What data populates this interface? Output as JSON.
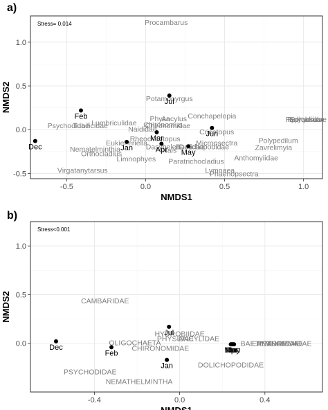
{
  "chart_data": [
    {
      "panel_label": "a)",
      "type": "scatter",
      "stress": "Stress= 0.014",
      "xlabel": "NMDS1",
      "ylabel": "NMDS2",
      "xlim": [
        -0.73,
        1.12
      ],
      "ylim": [
        -0.56,
        1.3
      ],
      "xticks": [
        -0.5,
        0.0,
        0.5,
        1.0
      ],
      "xtick_labels": [
        "-0.5",
        "0.0",
        "0.5",
        "1.0"
      ],
      "yticks": [
        -0.5,
        0.0,
        0.5,
        1.0
      ],
      "ytick_labels": [
        "-0.5",
        "0.0",
        "0.5",
        "1.0"
      ],
      "grid": true,
      "months": [
        {
          "label": "Dec",
          "x": -0.7,
          "y": -0.13
        },
        {
          "label": "Feb",
          "x": -0.41,
          "y": 0.22
        },
        {
          "label": "Jan",
          "x": -0.12,
          "y": -0.14
        },
        {
          "label": "Mar",
          "x": 0.07,
          "y": -0.03
        },
        {
          "label": "Apr",
          "x": 0.1,
          "y": -0.16
        },
        {
          "label": "Jul",
          "x": 0.15,
          "y": 0.39
        },
        {
          "label": "May",
          "x": 0.27,
          "y": -0.19
        },
        {
          "label": "Jun",
          "x": 0.42,
          "y": 0.02
        }
      ],
      "taxa": [
        {
          "label": "Procambarus",
          "x": 0.13,
          "y": 1.23
        },
        {
          "label": "Potamopyrgus",
          "x": 0.15,
          "y": 0.36
        },
        {
          "label": "Physa",
          "x": 0.09,
          "y": 0.13
        },
        {
          "label": "Ancylus",
          "x": 0.18,
          "y": 0.13
        },
        {
          "label": "Conchapelopia",
          "x": 0.42,
          "y": 0.16
        },
        {
          "label": "Chironomus",
          "x": 0.11,
          "y": 0.06
        },
        {
          "label": "Chironomidae",
          "x": 0.14,
          "y": 0.05
        },
        {
          "label": "Lumbriculidae",
          "x": -0.2,
          "y": 0.08
        },
        {
          "label": "Psychodidae",
          "x": -0.49,
          "y": 0.05
        },
        {
          "label": "Tubificidae",
          "x": -0.35,
          "y": 0.05
        },
        {
          "label": "Naididae",
          "x": -0.02,
          "y": 0.01
        },
        {
          "label": "Cricotopus",
          "x": 0.45,
          "y": -0.02
        },
        {
          "label": "Rheocricotopus",
          "x": 0.06,
          "y": -0.1
        },
        {
          "label": "Eukiefferiella",
          "x": -0.12,
          "y": -0.15
        },
        {
          "label": "Nematelminthia",
          "x": -0.32,
          "y": -0.22
        },
        {
          "label": "Orthocladius",
          "x": -0.28,
          "y": -0.27
        },
        {
          "label": "Limnophyes",
          "x": -0.06,
          "y": -0.33
        },
        {
          "label": "Virgatanytarsus",
          "x": -0.4,
          "y": -0.46
        },
        {
          "label": "Micropsectra",
          "x": 0.45,
          "y": -0.15
        },
        {
          "label": "Dolichopodidae",
          "x": 0.37,
          "y": -0.19
        },
        {
          "label": "Baetidae",
          "x": 0.28,
          "y": -0.19
        },
        {
          "label": "Dasyhelea",
          "x": 0.11,
          "y": -0.19
        },
        {
          "label": "Nais",
          "x": 0.15,
          "y": -0.23
        },
        {
          "label": "Paratrichocladius",
          "x": 0.32,
          "y": -0.36
        },
        {
          "label": "Lymnaea",
          "x": 0.47,
          "y": -0.46
        },
        {
          "label": "Phaenopsectra",
          "x": 0.56,
          "y": -0.5
        },
        {
          "label": "Anthomyiidae",
          "x": 0.7,
          "y": -0.32
        },
        {
          "label": "Zavrelimyia",
          "x": 0.81,
          "y": -0.2
        },
        {
          "label": "Polypedilum",
          "x": 0.84,
          "y": -0.12
        },
        {
          "label": "Tanytarsus",
          "x": 1.0,
          "y": 0.12
        },
        {
          "label": "Hydrobiidae",
          "x": 1.01,
          "y": 0.12
        },
        {
          "label": "Ephydridae",
          "x": 1.03,
          "y": 0.12
        }
      ]
    },
    {
      "panel_label": "b)",
      "type": "scatter",
      "stress": "Stress<0.001",
      "xlabel": "NMDS1",
      "ylabel": "NMDS2",
      "xlim": [
        -0.7,
        0.67
      ],
      "ylim": [
        -0.5,
        1.25
      ],
      "xticks": [
        -0.4,
        0.0,
        0.4
      ],
      "xtick_labels": [
        "-0.4",
        "0.0",
        "0.4"
      ],
      "yticks": [
        0.0,
        0.5,
        1.0
      ],
      "ytick_labels": [
        "0.0",
        "0.5",
        "1.0"
      ],
      "grid": true,
      "months": [
        {
          "label": "Dec",
          "x": -0.58,
          "y": 0.02
        },
        {
          "label": "Feb",
          "x": -0.32,
          "y": -0.04
        },
        {
          "label": "Jan",
          "x": -0.06,
          "y": -0.17
        },
        {
          "label": "Jul",
          "x": -0.05,
          "y": 0.17
        },
        {
          "label": "Mar",
          "x": 0.24,
          "y": -0.01
        },
        {
          "label": "Apr",
          "x": 0.245,
          "y": -0.01
        },
        {
          "label": "May",
          "x": 0.25,
          "y": -0.01
        },
        {
          "label": "Jun",
          "x": 0.255,
          "y": -0.01
        }
      ],
      "taxa": [
        {
          "label": "CAMBARIDAE",
          "x": -0.35,
          "y": 0.44
        },
        {
          "label": "HYDROBIIDAE",
          "x": 0.0,
          "y": 0.1
        },
        {
          "label": "PHYSIDAE",
          "x": -0.02,
          "y": 0.05
        },
        {
          "label": "ANCYLIDAE",
          "x": 0.09,
          "y": 0.05
        },
        {
          "label": "OLIGOCHAETA",
          "x": -0.21,
          "y": 0.01
        },
        {
          "label": "CHIRONOMIDAE",
          "x": -0.09,
          "y": -0.05
        },
        {
          "label": "BAETIDAE",
          "x": 0.37,
          "y": 0.0
        },
        {
          "label": "EPHYDRIDAE",
          "x": 0.45,
          "y": 0.0
        },
        {
          "label": "LYMNAEIDAE",
          "x": 0.47,
          "y": 0.0
        },
        {
          "label": "ANTHOMYIIDAE",
          "x": 0.49,
          "y": 0.0
        },
        {
          "label": "DOLICHOPODIDAE",
          "x": 0.24,
          "y": -0.22
        },
        {
          "label": "PSYCHODIDAE",
          "x": -0.42,
          "y": -0.29
        },
        {
          "label": "NEMATHELMINTHA",
          "x": -0.19,
          "y": -0.39
        }
      ]
    }
  ]
}
